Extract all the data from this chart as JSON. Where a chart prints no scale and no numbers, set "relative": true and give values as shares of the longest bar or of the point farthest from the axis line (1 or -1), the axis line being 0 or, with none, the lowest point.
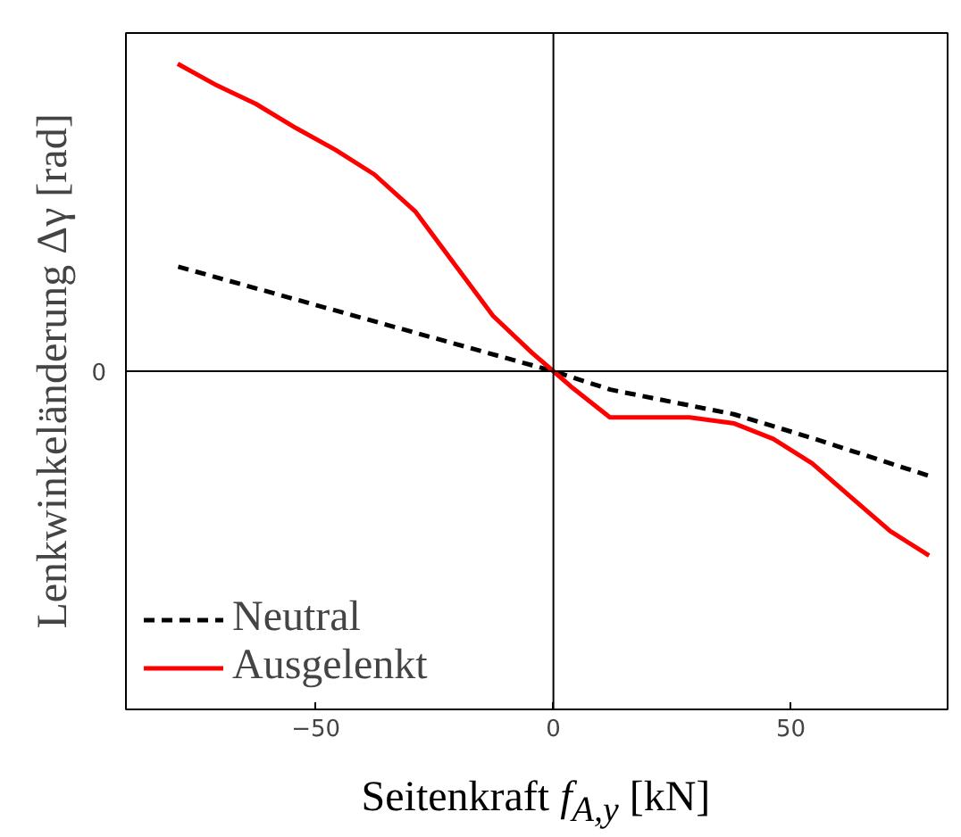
{
  "chart_data": {
    "type": "line",
    "relative": true,
    "xlabel": "Seitenkraft f$_{A,y}$ [kN]",
    "ylabel": "Lenkwinkeländerung Δγ [rad]",
    "xlim": [
      -90,
      83
    ],
    "xticks": [
      {
        "value": -50,
        "label": "−50"
      },
      0,
      50
    ],
    "grid": false,
    "legend": "bottom left",
    "ref_lines": [
      {
        "axis": "x",
        "value": 0,
        "color": "#000000"
      },
      {
        "axis": "y",
        "value": 0,
        "color": "#000000",
        "label": "0"
      }
    ],
    "series": [
      {
        "name": "Neutral",
        "color": "#000000",
        "line_style": "dashed",
        "x": [
          -79,
          0,
          12,
          38,
          55,
          79
        ],
        "values": [
          0.34,
          0,
          -0.06,
          -0.14,
          -0.22,
          -0.34
        ]
      },
      {
        "name": "Ausgelenkt",
        "color": "#ff0000",
        "line_style": "solid",
        "x": [
          -79.1,
          -70.9,
          -62.7,
          -54.1,
          -45.9,
          -37.7,
          -29.1,
          -20.9,
          -12.7,
          -4.5,
          0,
          3.7,
          11.9,
          28.7,
          38.1,
          46.3,
          54.5,
          62.7,
          70.9,
          79.1
        ],
        "values": [
          1.0,
          0.93,
          0.87,
          0.79,
          0.72,
          0.64,
          0.52,
          0.35,
          0.18,
          0.06,
          0,
          -0.05,
          -0.15,
          -0.15,
          -0.17,
          -0.22,
          -0.3,
          -0.41,
          -0.52,
          -0.6
        ]
      }
    ]
  }
}
